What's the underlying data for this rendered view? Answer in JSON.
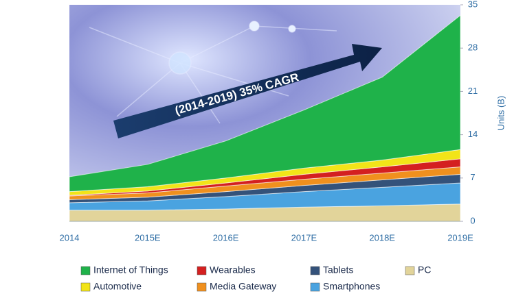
{
  "chart_data": {
    "type": "stacked_area",
    "annotation": "(2014-2019) 35% CAGR",
    "y_axis_label": "Units (B)",
    "categories": [
      "2014",
      "2015E",
      "2016E",
      "2017E",
      "2018E",
      "2019E"
    ],
    "ylim": [
      0,
      35
    ],
    "yticks": [
      0,
      7,
      14,
      21,
      28,
      35
    ],
    "series": [
      {
        "name": "PC",
        "color": "#e2d49a",
        "values": [
          1.8,
          1.8,
          2.0,
          2.3,
          2.5,
          2.8
        ]
      },
      {
        "name": "Smartphones",
        "color": "#4aa3e0",
        "values": [
          1.2,
          1.5,
          2.0,
          2.5,
          3.0,
          3.4
        ]
      },
      {
        "name": "Tablets",
        "color": "#34527a",
        "values": [
          0.5,
          0.6,
          0.8,
          1.0,
          1.2,
          1.4
        ]
      },
      {
        "name": "Media Gateway",
        "color": "#f0901e",
        "values": [
          0.6,
          0.7,
          0.9,
          1.0,
          1.1,
          1.2
        ]
      },
      {
        "name": "Wearables",
        "color": "#d42020",
        "values": [
          0.1,
          0.3,
          0.5,
          0.8,
          1.0,
          1.3
        ]
      },
      {
        "name": "Automotive",
        "color": "#f2e418",
        "values": [
          0.6,
          0.7,
          0.8,
          1.0,
          1.1,
          1.5
        ]
      },
      {
        "name": "Internet of Things",
        "color": "#1fb24a",
        "values": [
          2.4,
          3.6,
          6.0,
          9.4,
          13.4,
          21.7
        ]
      }
    ]
  }
}
